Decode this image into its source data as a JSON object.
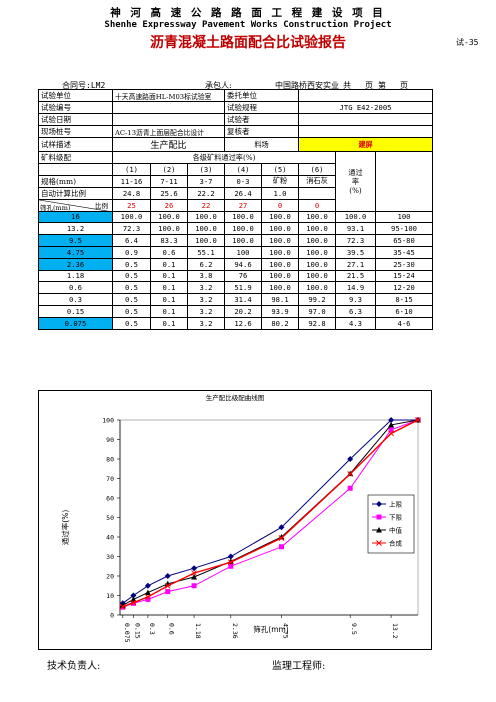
{
  "header": {
    "project_cn": "神 河 高 速 公 路 路 面 工 程 建 设 项 目",
    "project_en": "Shenhe Expressway Pavement Works Construction Project",
    "report_title": "沥青混凝土路面配合比试验报告",
    "report_no": "试-35"
  },
  "meta": {
    "contract": "合同号:LM2",
    "contractor_label": "承包人:",
    "supervisor": "中国路桥西安实业",
    "page_total": "共",
    "page_label": "页",
    "page_no": "第",
    "page_end": "页"
  },
  "info": {
    "unit_label": "试验单位",
    "unit_value": "十天高速路面HL-M03标试验室",
    "entrust_label": "委托单位",
    "entrust_value": "",
    "no_label": "试验编号",
    "no_value": "",
    "spec_label": "试验规程",
    "spec_value": "JTG E42-2005",
    "date_label": "试验日期",
    "date_value": "",
    "tester_label": "试验者",
    "tester_value": "",
    "pile_label": "现场桩号",
    "pile_value": "AC-13沥青上面层配合比设计",
    "checker_label": "复核者",
    "checker_value": "",
    "desc_label": "试样描述",
    "desc_value": "生产配比",
    "material_label": "料场",
    "material_value": "建屏"
  },
  "grading": {
    "grading_label": "矿料级配",
    "pass_rate_label": "各级矿料通过率(%)",
    "col_nums": [
      "(1)",
      "(2)",
      "(3)",
      "(4)",
      "(5)",
      "(6)"
    ],
    "spec_label": "规格(mm)",
    "specs": [
      "11-16",
      "7-11",
      "3-7",
      "0-3",
      "矿粉",
      "消石灰"
    ],
    "ratio_label": "自动计算比例",
    "ratios": [
      "24.8",
      "25.6",
      "22.2",
      "26.4",
      "1.0",
      ""
    ],
    "diag_top": "比例",
    "diag_bottom": "筛孔(mm)",
    "manual_ratios": [
      "25",
      "26",
      "22",
      "27",
      "0",
      "0"
    ],
    "pass_label": "通过率(%)",
    "pass_label_1": "通过",
    "pass_label_2": "率",
    "pass_label_3": "(%)",
    "rows": [
      {
        "sieve": "16",
        "v": [
          "100.0",
          "100.0",
          "100.0",
          "100.0",
          "100.0",
          "100.0"
        ],
        "pass": "100.0",
        "spec": "100"
      },
      {
        "sieve": "13.2",
        "v": [
          "72.3",
          "100.0",
          "100.0",
          "100.0",
          "100.0",
          "100.0"
        ],
        "pass": "93.1",
        "spec": "95-100"
      },
      {
        "sieve": "9.5",
        "v": [
          "6.4",
          "83.3",
          "100.0",
          "100.0",
          "100.0",
          "100.0"
        ],
        "pass": "72.3",
        "spec": "65-80"
      },
      {
        "sieve": "4.75",
        "v": [
          "0.9",
          "0.6",
          "55.1",
          "100",
          "100.0",
          "100.0"
        ],
        "pass": "39.5",
        "spec": "35-45"
      },
      {
        "sieve": "2.36",
        "v": [
          "0.5",
          "0.1",
          "6.2",
          "94.6",
          "100.0",
          "100.0"
        ],
        "pass": "27.1",
        "spec": "25-30"
      },
      {
        "sieve": "1.18",
        "v": [
          "0.5",
          "0.1",
          "3.8",
          "76",
          "100.0",
          "100.0"
        ],
        "pass": "21.5",
        "spec": "15-24"
      },
      {
        "sieve": "0.6",
        "v": [
          "0.5",
          "0.1",
          "3.2",
          "51.9",
          "100.0",
          "100.0"
        ],
        "pass": "14.9",
        "spec": "12-20"
      },
      {
        "sieve": "0.3",
        "v": [
          "0.5",
          "0.1",
          "3.2",
          "31.4",
          "98.1",
          "99.2"
        ],
        "pass": "9.3",
        "spec": "8-15"
      },
      {
        "sieve": "0.15",
        "v": [
          "0.5",
          "0.1",
          "3.2",
          "20.2",
          "93.9",
          "97.0"
        ],
        "pass": "6.3",
        "spec": "6-10"
      },
      {
        "sieve": "0.075",
        "v": [
          "0.5",
          "0.1",
          "3.2",
          "12.6",
          "80.2",
          "92.8"
        ],
        "pass": "4.3",
        "spec": "4-6"
      }
    ],
    "cyan_rows": [
      0,
      2,
      3,
      4,
      9
    ]
  },
  "chart_data": {
    "type": "line",
    "title": "生产配比级配曲线图",
    "xlabel": "筛孔(mm)",
    "ylabel": "通过率(%)",
    "x_scale": "power-0.45",
    "ylim": [
      0,
      100
    ],
    "yticks": [
      0,
      10,
      20,
      30,
      40,
      50,
      60,
      70,
      80,
      90,
      100
    ],
    "x": [
      0.075,
      0.15,
      0.3,
      0.6,
      1.18,
      2.36,
      4.75,
      9.5,
      13.2,
      16
    ],
    "xtick_labels": [
      "0.075",
      "0.15",
      "0.3",
      "0.6",
      "1.18",
      "2.36",
      "4.75",
      "9.5",
      "13.2"
    ],
    "legend_position": "right",
    "series": [
      {
        "name": "上限",
        "color": "#000080",
        "marker": "diamond",
        "values": [
          6,
          10,
          15,
          20,
          24,
          30,
          45,
          80,
          100,
          100
        ]
      },
      {
        "name": "下限",
        "color": "#ff00ff",
        "marker": "square",
        "values": [
          4,
          6,
          8,
          12,
          15,
          25,
          35,
          65,
          95,
          100
        ]
      },
      {
        "name": "中值",
        "color": "#000000",
        "marker": "triangle",
        "values": [
          5,
          8,
          11.5,
          16,
          19.5,
          27.5,
          40,
          72.5,
          97.5,
          100
        ]
      },
      {
        "name": "合成",
        "color": "#ff0000",
        "marker": "x",
        "values": [
          4.3,
          6.3,
          9.3,
          14.9,
          21.5,
          27.1,
          39.5,
          72.3,
          93.1,
          100
        ]
      }
    ]
  },
  "footer": {
    "tech_label": "技术负责人:",
    "supervisor_label": "监理工程师:"
  }
}
